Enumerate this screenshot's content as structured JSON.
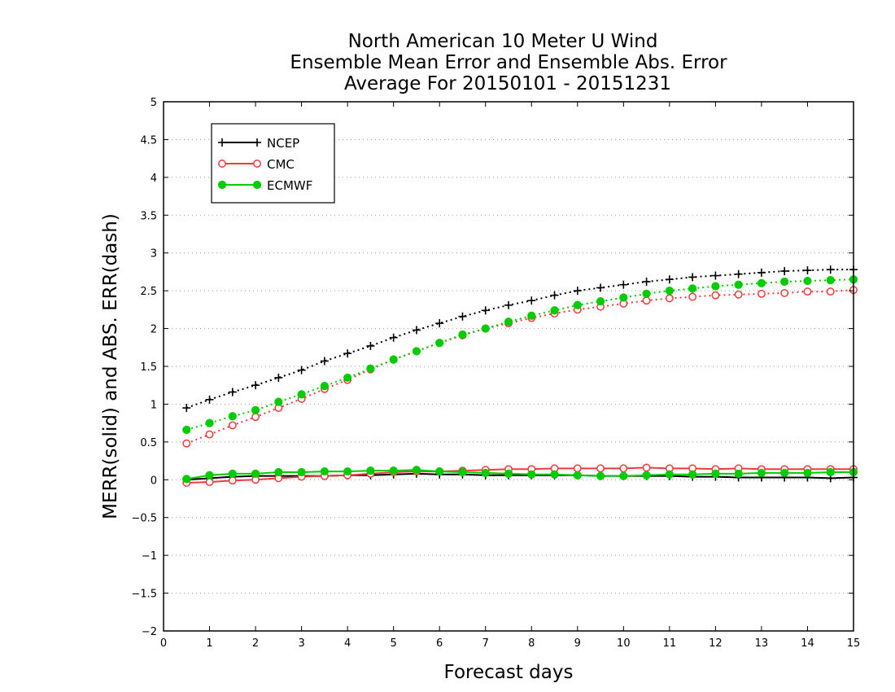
{
  "chart_data": {
    "type": "line",
    "title_lines": [
      "North American 10 Meter U Wind",
      "Ensemble Mean Error and Ensemble Abs. Error",
      "Average For 20150101 - 20151231"
    ],
    "xlabel": "Forecast days",
    "ylabel": "MERR(solid) and ABS. ERR(dash)",
    "xlim": [
      0,
      15
    ],
    "ylim": [
      -2,
      5
    ],
    "xticks": [
      0,
      1,
      2,
      3,
      4,
      5,
      6,
      7,
      8,
      9,
      10,
      11,
      12,
      13,
      14,
      15
    ],
    "yticks": [
      -2,
      -1.5,
      -1,
      -0.5,
      0,
      0.5,
      1,
      1.5,
      2,
      2.5,
      3,
      3.5,
      4,
      4.5,
      5
    ],
    "ytick_labels": [
      "−2",
      "−1.5",
      "−1",
      "−0.5",
      "0",
      "0.5",
      "1",
      "1.5",
      "2",
      "2.5",
      "3",
      "3.5",
      "4",
      "4.5",
      "5"
    ],
    "grid": "horizontal dotted",
    "legend_placement": "top-left",
    "x": [
      0.5,
      1,
      1.5,
      2,
      2.5,
      3,
      3.5,
      4,
      4.5,
      5,
      5.5,
      6,
      6.5,
      7,
      7.5,
      8,
      8.5,
      9,
      9.5,
      10,
      10.5,
      11,
      11.5,
      12,
      12.5,
      13,
      13.5,
      14,
      14.5,
      15
    ],
    "series": [
      {
        "name": "NCEP",
        "color": "#000000",
        "marker": "plus",
        "mean_error": [
          0,
          0.02,
          0.04,
          0.05,
          0.05,
          0.05,
          0.05,
          0.06,
          0.06,
          0.07,
          0.08,
          0.07,
          0.07,
          0.06,
          0.06,
          0.06,
          0.06,
          0.06,
          0.05,
          0.05,
          0.05,
          0.05,
          0.04,
          0.04,
          0.03,
          0.03,
          0.03,
          0.03,
          0.02,
          0.03
        ],
        "abs_error": [
          0.95,
          1.06,
          1.16,
          1.25,
          1.35,
          1.45,
          1.57,
          1.67,
          1.77,
          1.88,
          1.98,
          2.07,
          2.16,
          2.24,
          2.31,
          2.37,
          2.44,
          2.5,
          2.54,
          2.58,
          2.62,
          2.65,
          2.68,
          2.7,
          2.72,
          2.74,
          2.76,
          2.77,
          2.78,
          2.78
        ]
      },
      {
        "name": "CMC",
        "color": "#ee3b3b",
        "marker": "open-circle",
        "mean_error": [
          -0.04,
          -0.03,
          -0.01,
          0,
          0.02,
          0.04,
          0.05,
          0.06,
          0.08,
          0.1,
          0.11,
          0.11,
          0.12,
          0.13,
          0.14,
          0.14,
          0.15,
          0.15,
          0.15,
          0.15,
          0.16,
          0.15,
          0.15,
          0.14,
          0.15,
          0.14,
          0.14,
          0.14,
          0.14,
          0.14
        ],
        "abs_error": [
          0.48,
          0.6,
          0.72,
          0.83,
          0.95,
          1.07,
          1.2,
          1.32,
          1.46,
          1.59,
          1.7,
          1.81,
          1.91,
          2.0,
          2.07,
          2.14,
          2.2,
          2.25,
          2.29,
          2.33,
          2.37,
          2.4,
          2.42,
          2.44,
          2.45,
          2.46,
          2.47,
          2.49,
          2.49,
          2.51
        ]
      },
      {
        "name": "ECMWF",
        "color": "#00cc00",
        "marker": "filled-circle",
        "mean_error": [
          0.01,
          0.06,
          0.08,
          0.08,
          0.1,
          0.1,
          0.11,
          0.11,
          0.12,
          0.12,
          0.13,
          0.11,
          0.1,
          0.09,
          0.08,
          0.07,
          0.07,
          0.06,
          0.05,
          0.05,
          0.06,
          0.07,
          0.07,
          0.08,
          0.08,
          0.09,
          0.09,
          0.09,
          0.1,
          0.1
        ],
        "abs_error": [
          0.66,
          0.75,
          0.84,
          0.92,
          1.03,
          1.13,
          1.24,
          1.35,
          1.47,
          1.59,
          1.7,
          1.81,
          1.92,
          2.0,
          2.09,
          2.17,
          2.24,
          2.31,
          2.36,
          2.41,
          2.46,
          2.5,
          2.53,
          2.56,
          2.58,
          2.6,
          2.62,
          2.63,
          2.64,
          2.65
        ]
      }
    ]
  }
}
